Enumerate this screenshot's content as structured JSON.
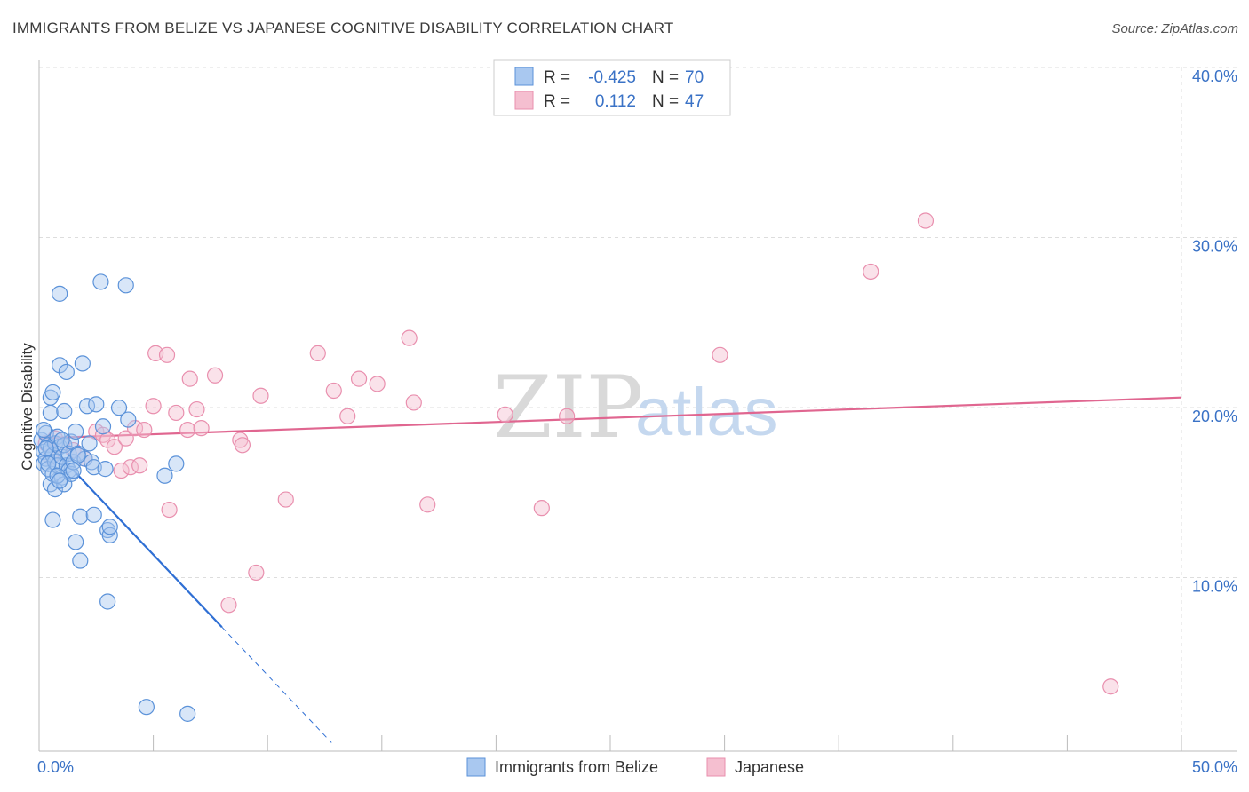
{
  "title": "IMMIGRANTS FROM BELIZE VS JAPANESE COGNITIVE DISABILITY CORRELATION CHART",
  "source": "Source: ZipAtlas.com",
  "watermark": {
    "zip": "ZIP",
    "atlas": "atlas"
  },
  "colors": {
    "blue_fill": "#a9c8f0",
    "blue_stroke": "#5b92d9",
    "blue_line": "#2f6fd4",
    "pink_fill": "#f5bfd0",
    "pink_stroke": "#e98fae",
    "pink_line": "#e06690",
    "axis_text": "#3a72c6",
    "grid": "#dddddd"
  },
  "legend": {
    "rows": [
      {
        "r_label": "R =",
        "r_value": "-0.425",
        "n_label": "N =",
        "n_value": "70"
      },
      {
        "r_label": "R =",
        "r_value": "0.112",
        "n_label": "N =",
        "n_value": "47"
      }
    ]
  },
  "bottom_legend": [
    "Immigrants from Belize",
    "Japanese"
  ],
  "chart_data": {
    "type": "scatter",
    "title": "IMMIGRANTS FROM BELIZE VS JAPANESE COGNITIVE DISABILITY CORRELATION CHART",
    "xlabel": "",
    "ylabel": "Cognitive Disability",
    "xlim": [
      0,
      50
    ],
    "ylim": [
      0,
      40
    ],
    "x_tick_labels": [
      "0.0%",
      "50.0%"
    ],
    "y_ticks": [
      10,
      20,
      30,
      40
    ],
    "y_tick_labels": [
      "10.0%",
      "20.0%",
      "30.0%",
      "40.0%"
    ],
    "grid": true,
    "legend_position": "top-center",
    "series": [
      {
        "name": "Immigrants from Belize",
        "r": -0.425,
        "n": 70,
        "trend": {
          "x0": 0.1,
          "y0": 18.5,
          "x1": 8.0,
          "y1": 7.3,
          "dash_to_x": 12.8,
          "dash_to_y": 0.5
        },
        "points": [
          [
            0.1,
            18.3
          ],
          [
            0.2,
            17.6
          ],
          [
            0.2,
            16.9
          ],
          [
            0.3,
            18.7
          ],
          [
            0.3,
            17.2
          ],
          [
            0.4,
            18.0
          ],
          [
            0.4,
            16.6
          ],
          [
            0.5,
            17.8
          ],
          [
            0.5,
            15.7
          ],
          [
            0.5,
            20.8
          ],
          [
            0.5,
            19.9
          ],
          [
            0.6,
            21.1
          ],
          [
            0.6,
            17.4
          ],
          [
            0.6,
            16.3
          ],
          [
            0.7,
            18.1
          ],
          [
            0.7,
            17.0
          ],
          [
            0.7,
            15.4
          ],
          [
            0.8,
            18.5
          ],
          [
            0.8,
            16.8
          ],
          [
            0.9,
            17.9
          ],
          [
            0.9,
            22.7
          ],
          [
            0.9,
            26.9
          ],
          [
            1.0,
            17.3
          ],
          [
            1.0,
            16.1
          ],
          [
            1.1,
            18.0
          ],
          [
            1.1,
            20.0
          ],
          [
            1.1,
            15.7
          ],
          [
            1.2,
            16.8
          ],
          [
            1.2,
            22.3
          ],
          [
            1.3,
            17.5
          ],
          [
            1.3,
            16.5
          ],
          [
            1.4,
            18.2
          ],
          [
            1.4,
            16.3
          ],
          [
            1.5,
            17.0
          ],
          [
            1.6,
            18.8
          ],
          [
            1.6,
            12.3
          ],
          [
            1.7,
            17.5
          ],
          [
            1.8,
            11.2
          ],
          [
            1.8,
            13.8
          ],
          [
            1.9,
            22.8
          ],
          [
            2.0,
            17.2
          ],
          [
            2.1,
            20.3
          ],
          [
            2.2,
            18.1
          ],
          [
            2.3,
            17.0
          ],
          [
            2.4,
            16.7
          ],
          [
            2.4,
            13.9
          ],
          [
            2.5,
            20.4
          ],
          [
            2.7,
            27.6
          ],
          [
            2.8,
            19.1
          ],
          [
            2.9,
            16.6
          ],
          [
            3.0,
            13.0
          ],
          [
            3.1,
            12.7
          ],
          [
            3.1,
            13.2
          ],
          [
            3.0,
            8.8
          ],
          [
            3.5,
            20.2
          ],
          [
            3.8,
            27.4
          ],
          [
            3.9,
            19.5
          ],
          [
            0.3,
            17.8
          ],
          [
            0.4,
            16.9
          ],
          [
            0.8,
            16.2
          ],
          [
            1.0,
            18.3
          ],
          [
            1.5,
            16.5
          ],
          [
            0.6,
            13.6
          ],
          [
            0.9,
            15.9
          ],
          [
            5.5,
            16.2
          ],
          [
            6.0,
            16.9
          ],
          [
            4.7,
            2.6
          ],
          [
            6.5,
            2.2
          ],
          [
            0.2,
            18.9
          ],
          [
            1.7,
            17.4
          ]
        ]
      },
      {
        "name": "Japanese",
        "r": 0.112,
        "n": 47,
        "trend": {
          "x0": 0.0,
          "y0": 18.4,
          "x1": 50.0,
          "y1": 20.8
        },
        "points": [
          [
            0.3,
            18.1
          ],
          [
            0.5,
            17.3
          ],
          [
            0.7,
            18.4
          ],
          [
            1.0,
            18.0
          ],
          [
            1.5,
            17.7
          ],
          [
            2.0,
            17.2
          ],
          [
            2.5,
            18.8
          ],
          [
            2.8,
            18.6
          ],
          [
            3.0,
            18.3
          ],
          [
            3.3,
            17.9
          ],
          [
            3.6,
            16.5
          ],
          [
            3.8,
            18.4
          ],
          [
            4.0,
            16.7
          ],
          [
            4.2,
            19.0
          ],
          [
            4.4,
            16.8
          ],
          [
            4.6,
            18.9
          ],
          [
            5.0,
            20.3
          ],
          [
            5.1,
            23.4
          ],
          [
            5.6,
            23.3
          ],
          [
            5.7,
            14.2
          ],
          [
            6.0,
            19.9
          ],
          [
            6.5,
            18.9
          ],
          [
            6.6,
            21.9
          ],
          [
            6.9,
            20.1
          ],
          [
            7.1,
            19.0
          ],
          [
            7.7,
            22.1
          ],
          [
            8.3,
            8.6
          ],
          [
            8.8,
            18.3
          ],
          [
            8.9,
            18.0
          ],
          [
            9.5,
            10.5
          ],
          [
            9.7,
            20.9
          ],
          [
            10.8,
            14.8
          ],
          [
            12.2,
            23.4
          ],
          [
            12.9,
            21.2
          ],
          [
            13.5,
            19.7
          ],
          [
            14.0,
            21.9
          ],
          [
            14.8,
            21.6
          ],
          [
            16.2,
            24.3
          ],
          [
            16.4,
            20.5
          ],
          [
            17.0,
            14.5
          ],
          [
            20.4,
            19.8
          ],
          [
            22.0,
            14.3
          ],
          [
            23.1,
            19.7
          ],
          [
            29.8,
            23.3
          ],
          [
            36.4,
            28.2
          ],
          [
            38.8,
            31.2
          ],
          [
            46.9,
            3.8
          ]
        ]
      }
    ]
  }
}
